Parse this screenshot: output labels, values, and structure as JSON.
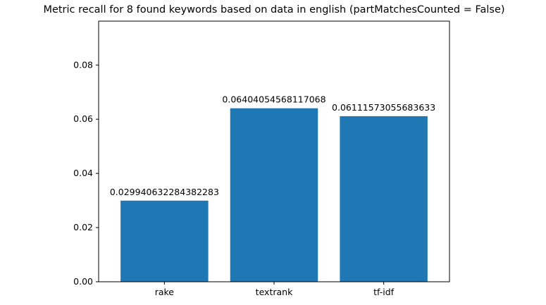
{
  "chart_data": {
    "type": "bar",
    "title": "Metric recall for 8 found keywords based on data in english (partMatchesCounted = False)",
    "xlabel": "",
    "ylabel": "",
    "categories": [
      "rake",
      "textrank",
      "tf-idf"
    ],
    "values": [
      0.029940632284382283,
      0.06404054568117068,
      0.06111573055683633
    ],
    "data_labels": [
      "0.029940632284382283",
      "0.06404054568117068",
      "0.06111573055683633"
    ],
    "ylim": [
      0,
      0.0962
    ],
    "yticks": [
      0.0,
      0.02,
      0.04,
      0.06,
      0.08
    ],
    "ytick_labels": [
      "0.00",
      "0.02",
      "0.04",
      "0.06",
      "0.08"
    ],
    "bar_color": "#1f77b4",
    "grid": false,
    "legend": "none"
  }
}
